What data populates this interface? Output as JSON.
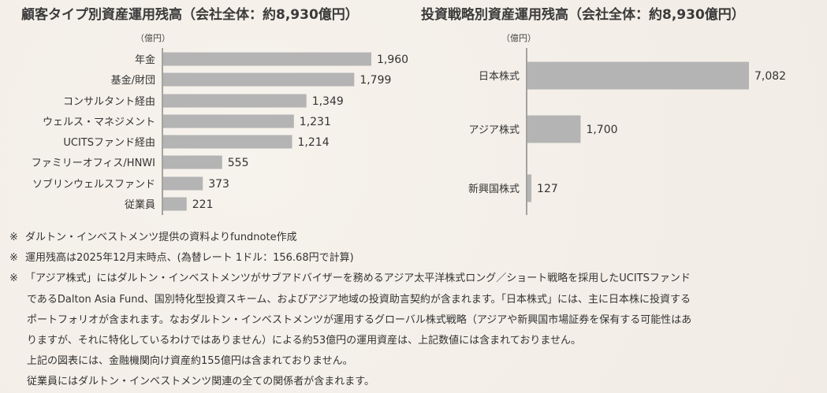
{
  "colors": {
    "bar": "#b4b4b4",
    "axis": "#555555",
    "text": "#333333"
  },
  "chart_data": [
    {
      "type": "bar",
      "orientation": "horizontal",
      "title": "顧客タイプ別資産運用残高（会社全体：約8,930億円）",
      "unit_label": "（億円）",
      "categories": [
        "年金",
        "基金/財団",
        "コンサルタント経由",
        "ウェルス・マネジメント",
        "UCITSファンド経由",
        "ファミリーオフィス/HNWI",
        "ソブリンウェルスファンド",
        "従業員"
      ],
      "values": [
        1960,
        1799,
        1349,
        1231,
        1214,
        555,
        373,
        221
      ],
      "value_labels": [
        "1,960",
        "1,799",
        "1,349",
        "1,231",
        "1,214",
        "555",
        "373",
        "221"
      ],
      "grid": false
    },
    {
      "type": "bar",
      "orientation": "horizontal",
      "title": "投資戦略別資産運用残高（会社全体：約8,930億円）",
      "unit_label": "（億円）",
      "categories": [
        "日本株式",
        "アジア株式",
        "新興国株式"
      ],
      "values": [
        7082,
        1700,
        127
      ],
      "value_labels": [
        "7,082",
        "1,700",
        "127"
      ],
      "grid": false
    }
  ],
  "notes": [
    {
      "mark": "※",
      "text": "ダルトン・インベストメンツ提供の資料よりfundnote作成"
    },
    {
      "mark": "※",
      "text": "運用残高は2025年12月末時点、(為替レート 1ドル：156.68円で計算)"
    },
    {
      "mark": "※",
      "text": "「アジア株式」にはダルトン・インベストメンツがサブアドバイザーを務めるアジア太平洋株式ロング／ショート戦略を採用したUCITSファンド"
    },
    {
      "mark": "",
      "text": "であるDalton Asia Fund、国別特化型投資スキーム、およびアジア地域の投資助言契約が含まれます。「日本株式」には、主に日本株に投資する"
    },
    {
      "mark": "",
      "text": "ポートフォリオが含まれます。なおダルトン・インベストメンツが運用するグローバル株式戦略（アジアや新興国市場証券を保有する可能性はあ"
    },
    {
      "mark": "",
      "text": "りますが、それに特化しているわけではありません）による約53億円の運用資産は、上記数値には含まれておりません。"
    },
    {
      "mark": "",
      "text": "上記の図表には、金融機関向け資産約155億円は含まれておりません。"
    },
    {
      "mark": "",
      "text": "従業員にはダルトン・インベストメンツ関連の全ての関係者が含まれます。"
    }
  ]
}
